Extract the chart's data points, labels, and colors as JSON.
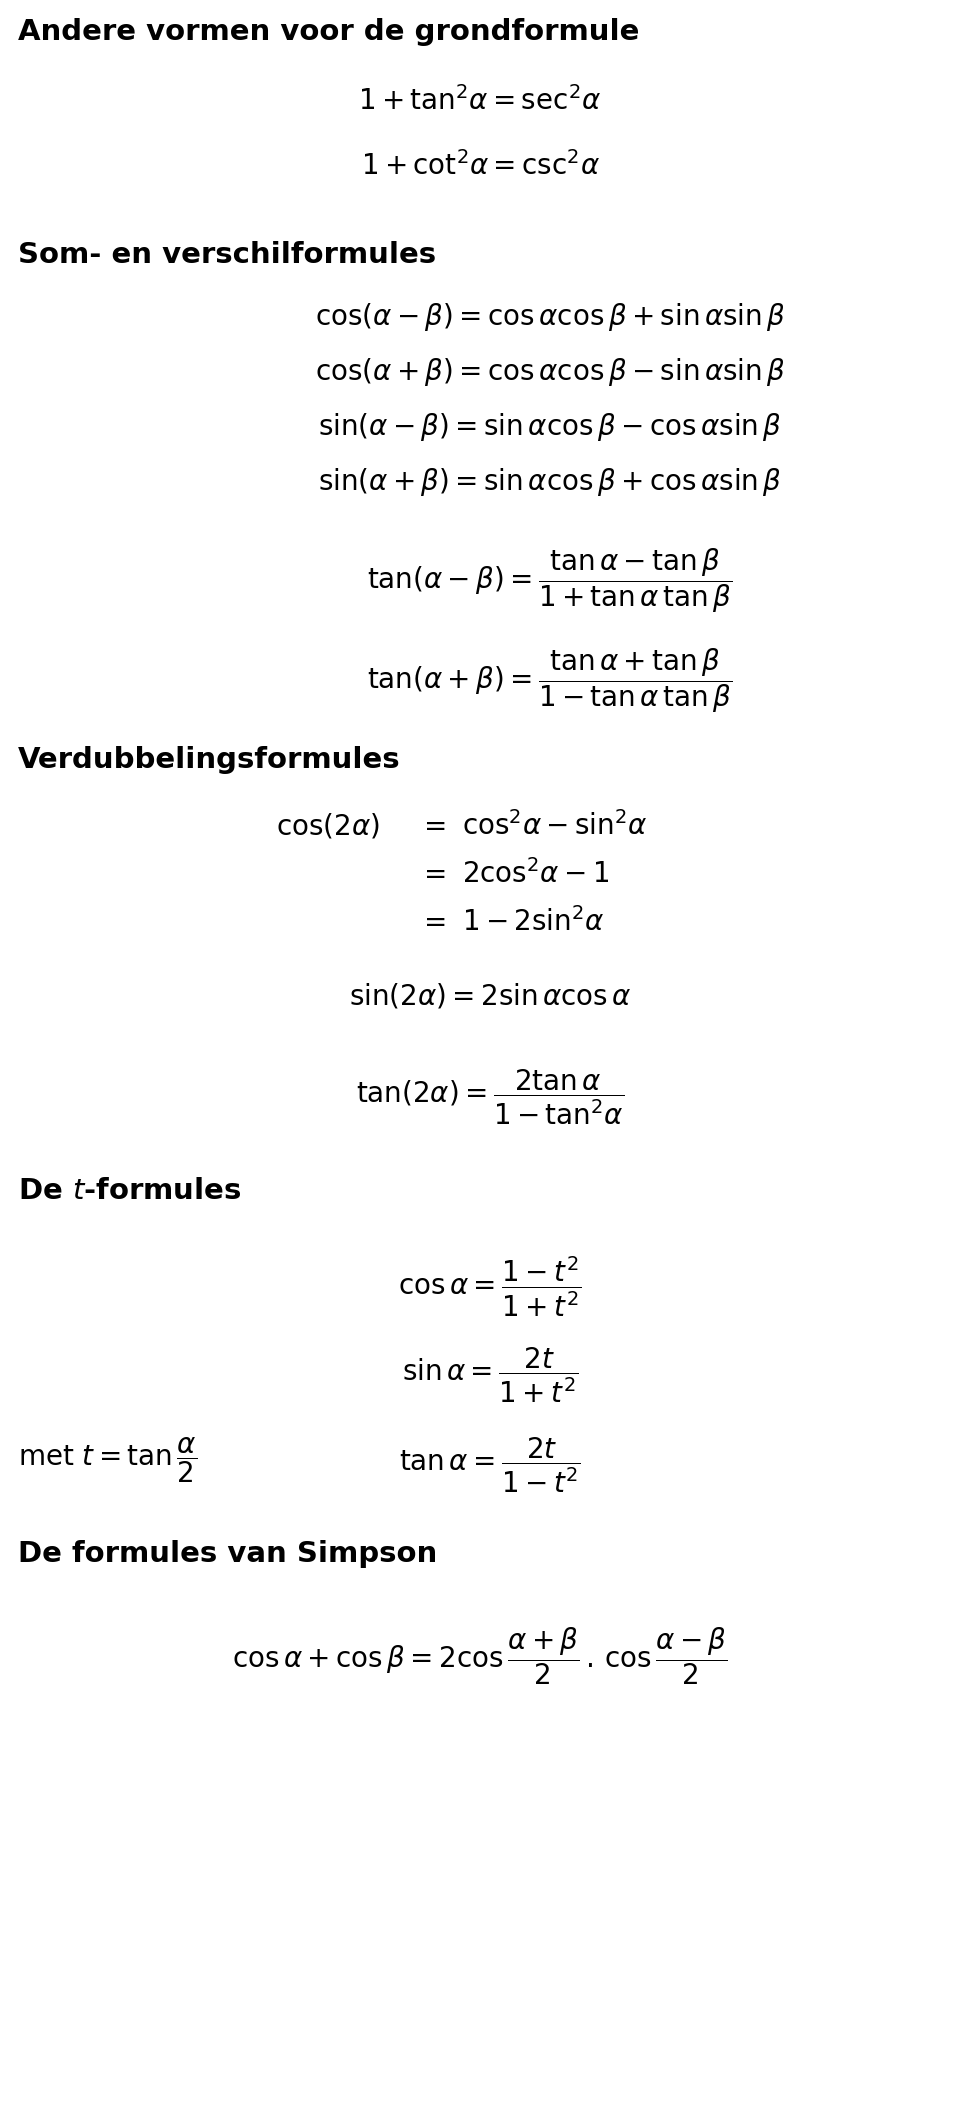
{
  "bg_color": "#ffffff",
  "heading_fs": 21,
  "formula_fs": 20,
  "small_fs": 19,
  "fig_w": 9.6,
  "fig_h": 21.17,
  "dpi": 100,
  "sections": {
    "s1_title": "Andere vormen voor de grondformule",
    "s2_title": "Som- en verschilformules",
    "s3_title": "Verdubbelingsformules",
    "s4_title": "De $t$-formules",
    "s5_title": "De formules van Simpson"
  }
}
